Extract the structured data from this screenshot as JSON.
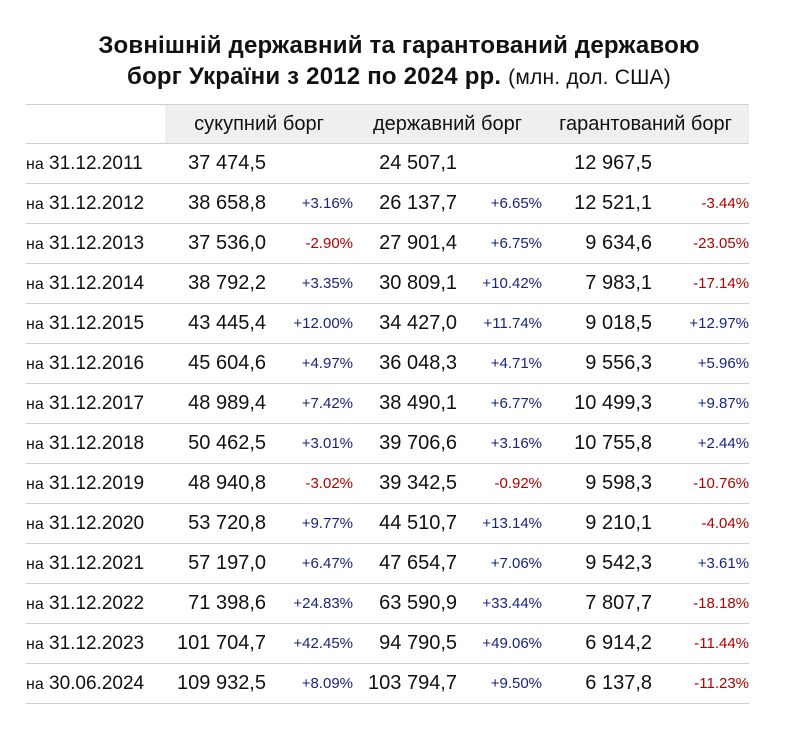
{
  "title": {
    "line1": "Зовнішній державний та гарантований державою",
    "line2": "борг України з 2012 по 2024 рр.",
    "unit": "(млн. дол. США)"
  },
  "chart_data": {
    "type": "table",
    "columns": [
      "сукупний борг",
      "державний борг",
      "гарантований борг"
    ],
    "rows": [
      {
        "prefix": "на",
        "date": "31.12.2011",
        "total": "37 474,5",
        "total_pct": "",
        "state": "24 507,1",
        "state_pct": "",
        "guaranteed": "12 967,5",
        "guaranteed_pct": ""
      },
      {
        "prefix": "на",
        "date": "31.12.2012",
        "total": "38 658,8",
        "total_pct": "+3.16%",
        "state": "26 137,7",
        "state_pct": "+6.65%",
        "guaranteed": "12 521,1",
        "guaranteed_pct": "-3.44%"
      },
      {
        "prefix": "на",
        "date": "31.12.2013",
        "total": "37 536,0",
        "total_pct": "-2.90%",
        "state": "27 901,4",
        "state_pct": "+6.75%",
        "guaranteed": "9 634,6",
        "guaranteed_pct": "-23.05%"
      },
      {
        "prefix": "на",
        "date": "31.12.2014",
        "total": "38 792,2",
        "total_pct": "+3.35%",
        "state": "30 809,1",
        "state_pct": "+10.42%",
        "guaranteed": "7 983,1",
        "guaranteed_pct": "-17.14%"
      },
      {
        "prefix": "на",
        "date": "31.12.2015",
        "total": "43 445,4",
        "total_pct": "+12.00%",
        "state": "34 427,0",
        "state_pct": "+11.74%",
        "guaranteed": "9 018,5",
        "guaranteed_pct": "+12.97%"
      },
      {
        "prefix": "на",
        "date": "31.12.2016",
        "total": "45 604,6",
        "total_pct": "+4.97%",
        "state": "36 048,3",
        "state_pct": "+4.71%",
        "guaranteed": "9 556,3",
        "guaranteed_pct": "+5.96%"
      },
      {
        "prefix": "на",
        "date": "31.12.2017",
        "total": "48 989,4",
        "total_pct": "+7.42%",
        "state": "38 490,1",
        "state_pct": "+6.77%",
        "guaranteed": "10 499,3",
        "guaranteed_pct": "+9.87%"
      },
      {
        "prefix": "на",
        "date": "31.12.2018",
        "total": "50 462,5",
        "total_pct": "+3.01%",
        "state": "39 706,6",
        "state_pct": "+3.16%",
        "guaranteed": "10 755,8",
        "guaranteed_pct": "+2.44%"
      },
      {
        "prefix": "на",
        "date": "31.12.2019",
        "total": "48 940,8",
        "total_pct": "-3.02%",
        "state": "39 342,5",
        "state_pct": "-0.92%",
        "guaranteed": "9 598,3",
        "guaranteed_pct": "-10.76%"
      },
      {
        "prefix": "на",
        "date": "31.12.2020",
        "total": "53 720,8",
        "total_pct": "+9.77%",
        "state": "44 510,7",
        "state_pct": "+13.14%",
        "guaranteed": "9 210,1",
        "guaranteed_pct": "-4.04%"
      },
      {
        "prefix": "на",
        "date": "31.12.2021",
        "total": "57 197,0",
        "total_pct": "+6.47%",
        "state": "47 654,7",
        "state_pct": "+7.06%",
        "guaranteed": "9 542,3",
        "guaranteed_pct": "+3.61%"
      },
      {
        "prefix": "на",
        "date": "31.12.2022",
        "total": "71 398,6",
        "total_pct": "+24.83%",
        "state": "63 590,9",
        "state_pct": "+33.44%",
        "guaranteed": "7 807,7",
        "guaranteed_pct": "-18.18%"
      },
      {
        "prefix": "на",
        "date": "31.12.2023",
        "total": "101 704,7",
        "total_pct": "+42.45%",
        "state": "94 790,5",
        "state_pct": "+49.06%",
        "guaranteed": "6 914,2",
        "guaranteed_pct": "-11.44%"
      },
      {
        "prefix": "на",
        "date": "30.06.2024",
        "total": "109 932,5",
        "total_pct": "+8.09%",
        "state": "103 794,7",
        "state_pct": "+9.50%",
        "guaranteed": "6 137,8",
        "guaranteed_pct": "-11.23%"
      }
    ]
  },
  "colors": {
    "positive": "#1a237e",
    "negative": "#b00000",
    "header_bg": "#efefef",
    "border": "#cfcfcf"
  }
}
